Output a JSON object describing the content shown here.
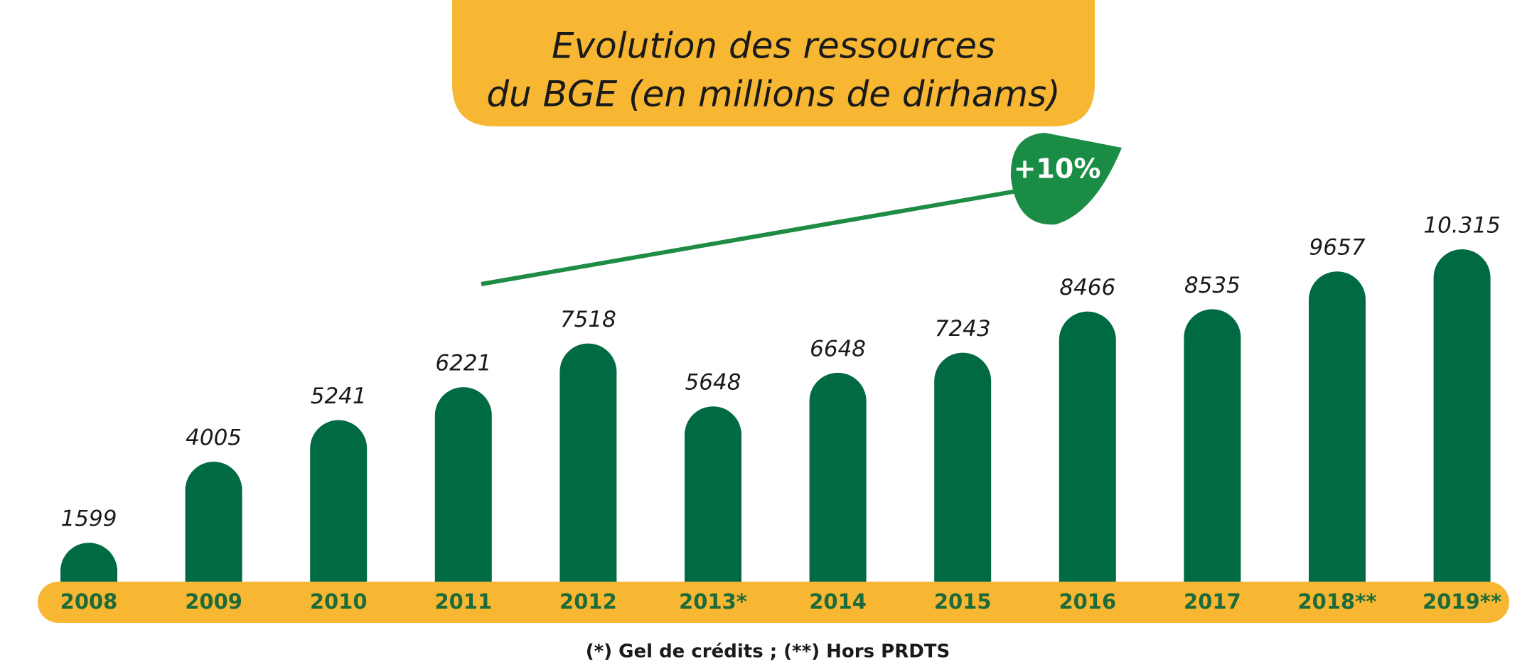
{
  "chart_data": {
    "type": "bar",
    "title": [
      "Evolution des ressources",
      "du BGE (en millions de dirhams)"
    ],
    "categories": [
      "2008",
      "2009",
      "2010",
      "2011",
      "2012",
      "2013*",
      "2014",
      "2015",
      "2016",
      "2017",
      "2018**",
      "2019**"
    ],
    "values": [
      1599,
      4005,
      5241,
      6221,
      7518,
      5648,
      6648,
      7243,
      8466,
      8535,
      9657,
      10315
    ],
    "value_labels": [
      "1599",
      "4005",
      "5241",
      "6221",
      "7518",
      "5648",
      "6648",
      "7243",
      "8466",
      "8535",
      "9657",
      "10.315"
    ],
    "color": "#006a43",
    "annotation": "+10%",
    "footnote": "(*) Gel de crédits ; (**) Hors PRDTS"
  }
}
